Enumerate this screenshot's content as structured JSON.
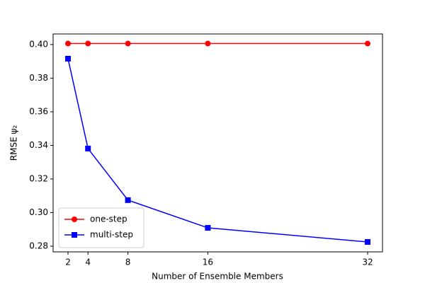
{
  "chart_data": {
    "type": "line",
    "x_label": "Number of Ensemble Members",
    "y_label": "RMSE ψ₂",
    "x": [
      2,
      4,
      8,
      16,
      32
    ],
    "series": [
      {
        "name": "one-step",
        "color": "#ff0000",
        "marker": "circle",
        "values": [
          0.4006,
          0.4006,
          0.4006,
          0.4006,
          0.4006
        ]
      },
      {
        "name": "multi-step",
        "color": "#0000ff",
        "marker": "square",
        "values": [
          0.3916,
          0.3381,
          0.3074,
          0.2909,
          0.2825
        ]
      }
    ],
    "xlim": [
      0.51,
      33.49
    ],
    "ylim": [
      0.2766,
      0.4063
    ],
    "xticks": [
      2,
      4,
      8,
      16,
      32
    ],
    "yticks": [
      {
        "value": 0.28,
        "label": "0.28"
      },
      {
        "value": 0.3,
        "label": "0.30"
      },
      {
        "value": 0.32,
        "label": "0.32"
      },
      {
        "value": 0.34,
        "label": "0.34"
      },
      {
        "value": 0.36,
        "label": "0.36"
      },
      {
        "value": 0.38,
        "label": "0.38"
      },
      {
        "value": 0.4,
        "label": "0.40"
      }
    ],
    "grid": false,
    "legend": "lower left"
  }
}
